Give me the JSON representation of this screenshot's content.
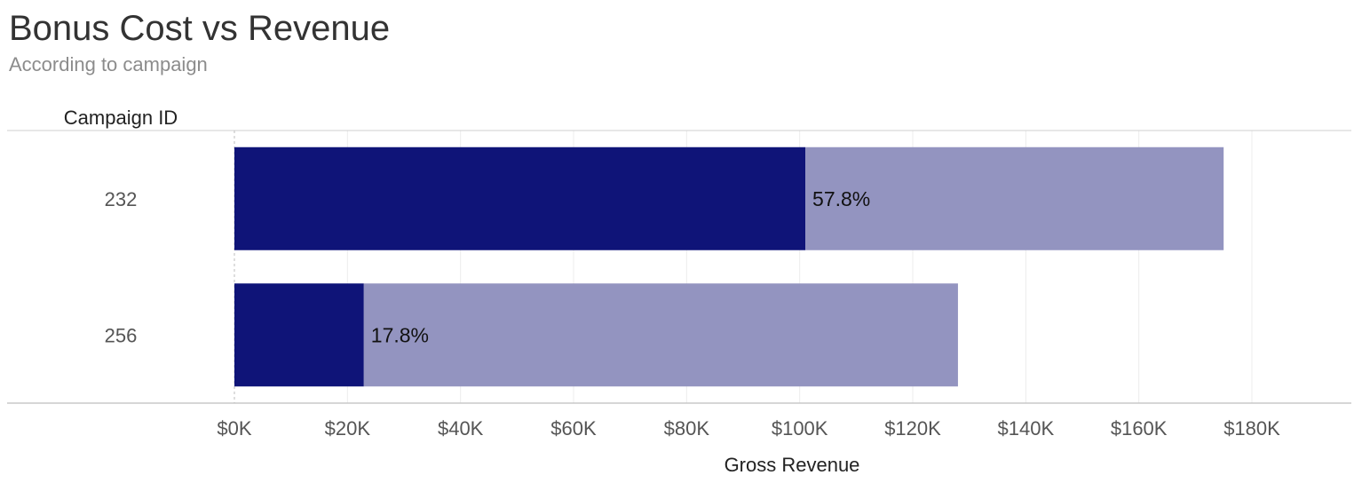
{
  "header": {
    "title": "Bonus Cost vs Revenue",
    "subtitle": "According to campaign"
  },
  "chart_data": {
    "type": "bar",
    "orientation": "horizontal",
    "stacked": true,
    "y_header": "Campaign ID",
    "xlabel": "Gross Revenue",
    "categories": [
      "232",
      "256"
    ],
    "series": [
      {
        "values": [
          101000,
          22900
        ],
        "color": "#0f1478"
      },
      {
        "values": [
          74000,
          105100
        ],
        "color": "#9394c0"
      }
    ],
    "totals": [
      175000,
      128000
    ],
    "data_labels": [
      "57.8%",
      "17.8%"
    ],
    "xlim": [
      0,
      180000
    ],
    "x_ticks": [
      0,
      20000,
      40000,
      60000,
      80000,
      100000,
      120000,
      140000,
      160000,
      180000
    ],
    "x_tick_labels": [
      "$0K",
      "$20K",
      "$40K",
      "$60K",
      "$80K",
      "$100K",
      "$120K",
      "$140K",
      "$160K",
      "$180K"
    ],
    "grid": "vertical",
    "legend": "none"
  }
}
